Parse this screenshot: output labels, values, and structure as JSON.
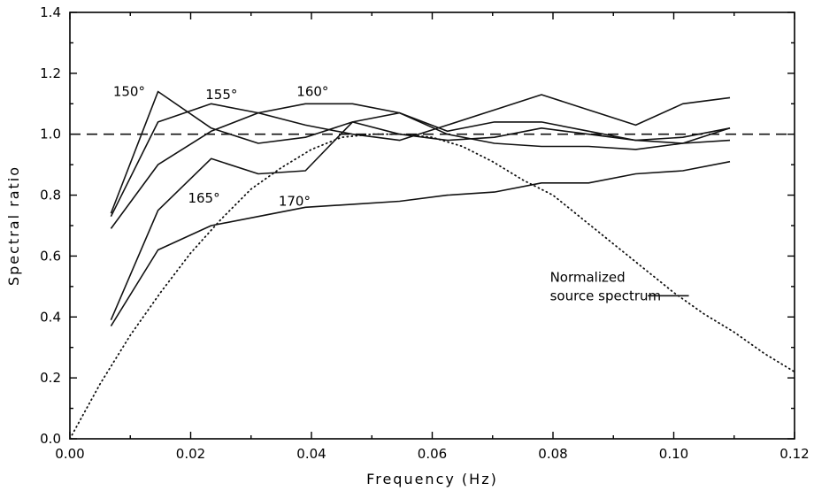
{
  "chart_data": {
    "type": "line",
    "title": "",
    "xlabel": "Frequency (Hz)",
    "ylabel": "Spectral ratio",
    "xlim": [
      0.0,
      0.12
    ],
    "ylim": [
      0.0,
      1.4
    ],
    "xticks": [
      0.0,
      0.02,
      0.04,
      0.06,
      0.08,
      0.1,
      0.12
    ],
    "xtick_labels": [
      "0.00",
      "0.02",
      "0.04",
      "0.06",
      "0.08",
      "0.10",
      "0.12"
    ],
    "yticks": [
      0.0,
      0.2,
      0.4,
      0.6,
      0.8,
      1.0,
      1.2,
      1.4
    ],
    "ytick_labels": [
      "0.0",
      "0.2",
      "0.4",
      "0.6",
      "0.8",
      "1.0",
      "1.2",
      "1.4"
    ],
    "grid": false,
    "series": [
      {
        "name": "150°",
        "x": [
          0.0068,
          0.0146,
          0.0234,
          0.0312,
          0.039,
          0.0468,
          0.0546,
          0.0625,
          0.0703,
          0.0781,
          0.0859,
          0.0937,
          0.1015,
          0.1093
        ],
        "y": [
          0.74,
          1.14,
          1.02,
          0.97,
          0.99,
          1.04,
          1.0,
          0.98,
          0.99,
          1.02,
          1.0,
          0.98,
          0.97,
          1.02
        ]
      },
      {
        "name": "155°",
        "x": [
          0.0068,
          0.0146,
          0.0234,
          0.0312,
          0.039,
          0.0468,
          0.0546,
          0.0625,
          0.0703,
          0.0781,
          0.0859,
          0.0937,
          0.1015,
          0.1093
        ],
        "y": [
          0.73,
          1.04,
          1.1,
          1.07,
          1.03,
          1.0,
          0.98,
          1.03,
          1.08,
          1.13,
          1.08,
          1.03,
          1.1,
          1.12
        ]
      },
      {
        "name": "160°",
        "x": [
          0.0068,
          0.0146,
          0.0234,
          0.0312,
          0.039,
          0.0468,
          0.0546,
          0.0625,
          0.0703,
          0.0781,
          0.0859,
          0.0937,
          0.1015,
          0.1093
        ],
        "y": [
          0.69,
          0.9,
          1.01,
          1.07,
          1.1,
          1.1,
          1.07,
          1.0,
          0.97,
          0.96,
          0.96,
          0.95,
          0.97,
          0.98
        ]
      },
      {
        "name": "165°",
        "x": [
          0.0068,
          0.0146,
          0.0234,
          0.0312,
          0.039,
          0.0468,
          0.0546,
          0.0625,
          0.0703,
          0.0781,
          0.0859,
          0.0937,
          0.1015,
          0.1093
        ],
        "y": [
          0.39,
          0.75,
          0.92,
          0.87,
          0.88,
          1.04,
          1.07,
          1.01,
          1.04,
          1.04,
          1.01,
          0.98,
          0.99,
          1.02
        ]
      },
      {
        "name": "170°",
        "x": [
          0.0068,
          0.0146,
          0.0234,
          0.0312,
          0.039,
          0.0468,
          0.0546,
          0.0625,
          0.0703,
          0.0781,
          0.0859,
          0.0937,
          0.1015,
          0.1093
        ],
        "y": [
          0.37,
          0.62,
          0.7,
          0.73,
          0.76,
          0.77,
          0.78,
          0.8,
          0.81,
          0.84,
          0.84,
          0.87,
          0.88,
          0.91
        ]
      }
    ],
    "reference_line": {
      "y": 1.0,
      "style": "dashed"
    },
    "source_spectrum": {
      "label_lines": [
        "Normalized",
        "source spectrum"
      ],
      "style": "dotted",
      "x": [
        0.0,
        0.005,
        0.01,
        0.015,
        0.02,
        0.025,
        0.03,
        0.035,
        0.04,
        0.045,
        0.05,
        0.055,
        0.06,
        0.065,
        0.07,
        0.075,
        0.08,
        0.085,
        0.09,
        0.095,
        0.1,
        0.105,
        0.11,
        0.115,
        0.12
      ],
      "y": [
        0.0,
        0.18,
        0.34,
        0.48,
        0.61,
        0.72,
        0.82,
        0.89,
        0.95,
        0.99,
        1.0,
        1.0,
        0.99,
        0.96,
        0.91,
        0.85,
        0.8,
        0.72,
        0.64,
        0.56,
        0.48,
        0.41,
        0.35,
        0.28,
        0.22
      ]
    },
    "annotations": [
      {
        "text": "150°",
        "x": 0.0098,
        "y": 1.14
      },
      {
        "text": "155°",
        "x": 0.0251,
        "y": 1.13
      },
      {
        "text": "160°",
        "x": 0.0402,
        "y": 1.14
      },
      {
        "text": "165°",
        "x": 0.0222,
        "y": 0.79
      },
      {
        "text": "170°",
        "x": 0.0372,
        "y": 0.78
      }
    ]
  }
}
